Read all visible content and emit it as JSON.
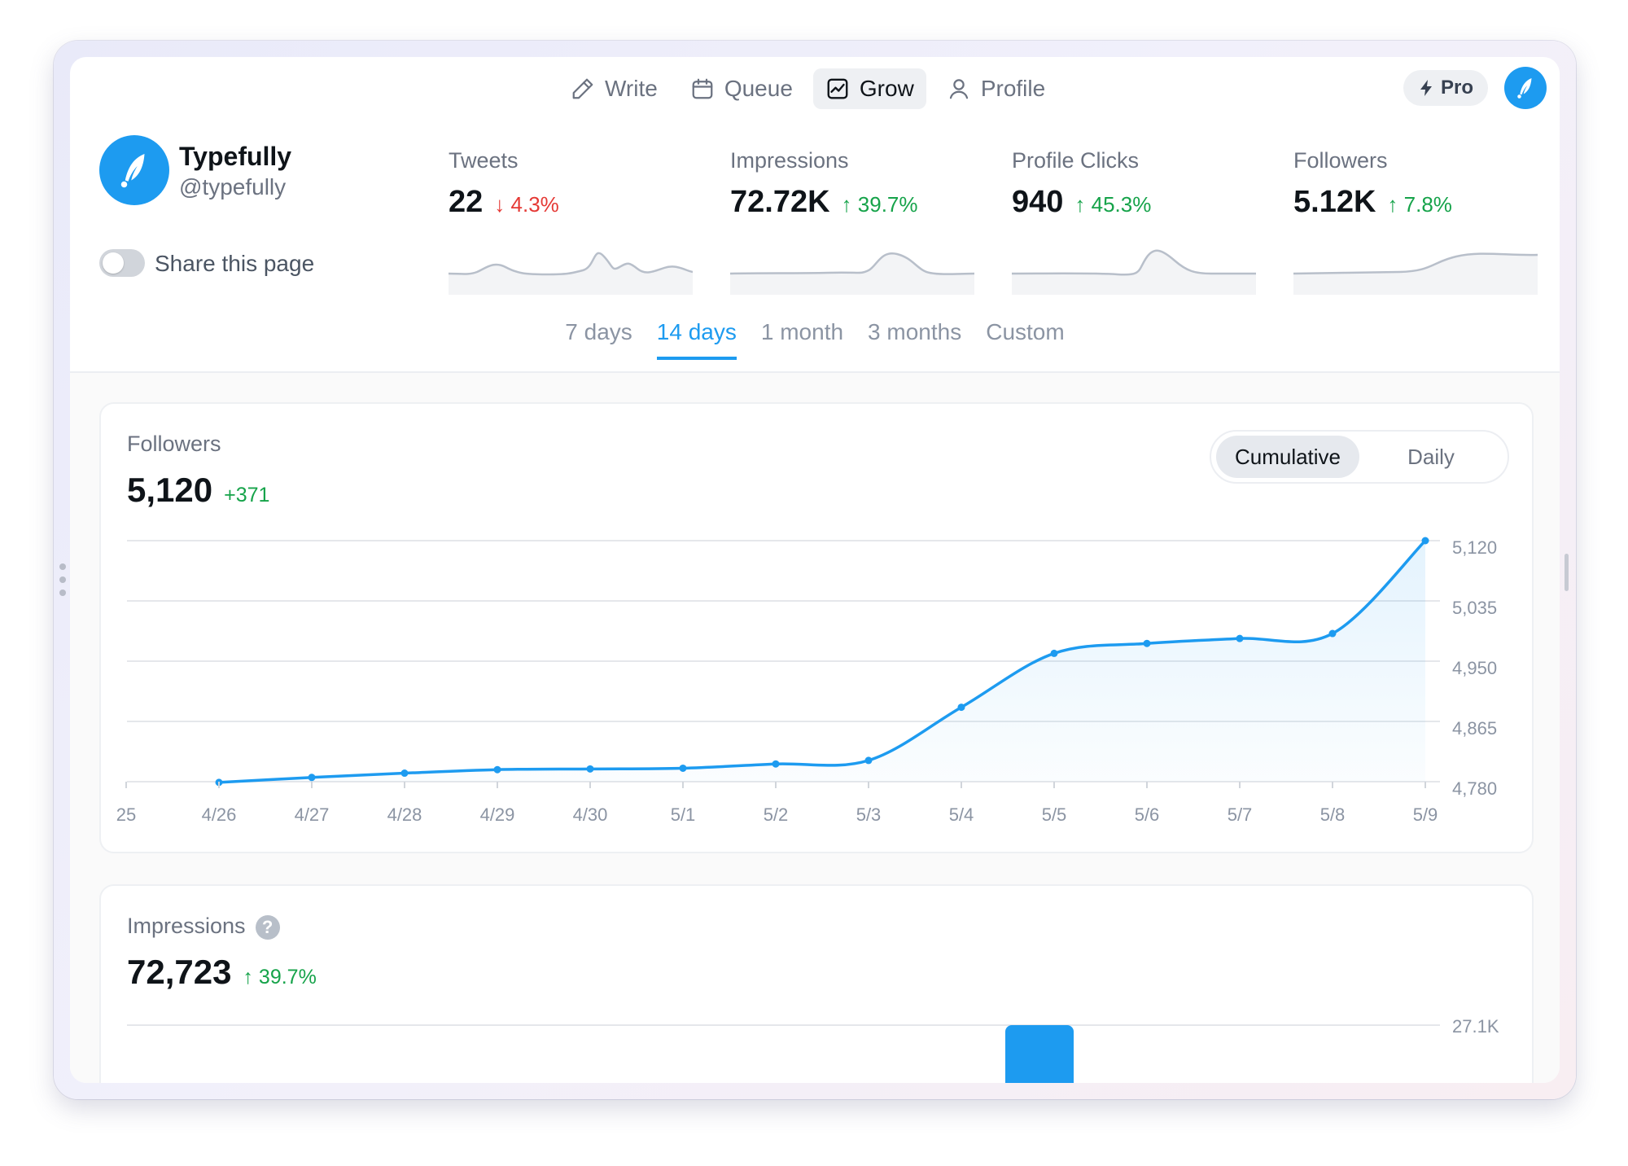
{
  "nav": {
    "items": [
      {
        "label": "Write",
        "icon": "pencil-icon",
        "active": false
      },
      {
        "label": "Queue",
        "icon": "calendar-icon",
        "active": false
      },
      {
        "label": "Grow",
        "icon": "chart-icon",
        "active": true
      },
      {
        "label": "Profile",
        "icon": "user-icon",
        "active": false
      }
    ],
    "pro_label": "Pro"
  },
  "profile": {
    "name": "Typefully",
    "handle": "@typefully",
    "share_label": "Share this page",
    "share_enabled": false
  },
  "stats": [
    {
      "label": "Tweets",
      "value": "22",
      "change": "4.3%",
      "direction": "down"
    },
    {
      "label": "Impressions",
      "value": "72.72K",
      "change": "39.7%",
      "direction": "up"
    },
    {
      "label": "Profile Clicks",
      "value": "940",
      "change": "45.3%",
      "direction": "up"
    },
    {
      "label": "Followers",
      "value": "5.12K",
      "change": "7.8%",
      "direction": "up"
    }
  ],
  "tabs": [
    "7 days",
    "14 days",
    "1 month",
    "3 months",
    "Custom"
  ],
  "active_tab": "14 days",
  "followers_card": {
    "title": "Followers",
    "value": "5,120",
    "delta": "+371",
    "toggle": [
      "Cumulative",
      "Daily"
    ],
    "toggle_active": "Cumulative"
  },
  "impressions_card": {
    "title": "Impressions",
    "help": "?",
    "value": "72,723",
    "change": "39.7%",
    "y_top_label": "27.1K"
  },
  "colors": {
    "accent": "#1d9bf0",
    "up": "#16a34a",
    "down": "#e53935"
  },
  "chart_data": {
    "type": "area",
    "x": [
      "25",
      "4/26",
      "4/27",
      "4/28",
      "4/29",
      "4/30",
      "5/1",
      "5/2",
      "5/3",
      "5/4",
      "5/5",
      "5/6",
      "5/7",
      "5/8",
      "5/9"
    ],
    "series": [
      {
        "values": [
          null,
          4779,
          4786,
          4792,
          4797,
          4798,
          4799,
          4805,
          4810,
          4885,
          4961,
          4975,
          4982,
          4989,
          5120
        ]
      }
    ],
    "yticks": [
      "5,120",
      "5,035",
      "4,950",
      "4,865",
      "4,780"
    ],
    "ylim": [
      4780,
      5120
    ],
    "grid": true
  }
}
